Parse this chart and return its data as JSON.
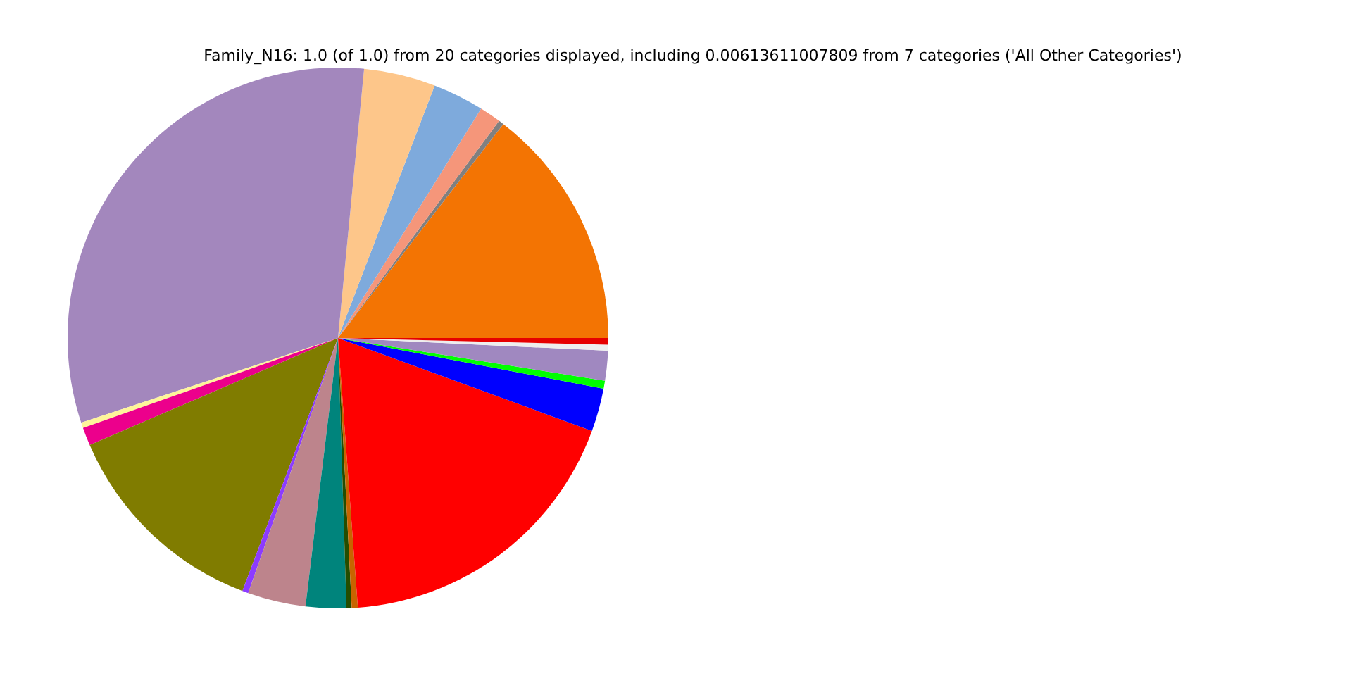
{
  "chart_data": {
    "type": "pie",
    "title": "Family_N16: 1.0 (of 1.0) from 20 categories displayed, including 0.00613611007809 from 7 categories ('All Other Categories')",
    "categories": [
      null,
      null,
      null,
      null,
      null,
      null,
      null,
      null,
      null,
      null,
      null,
      null,
      null,
      null,
      null,
      null,
      null,
      null,
      null,
      null
    ],
    "values": [
      14.53,
      0.31,
      1.28,
      3.06,
      4.28,
      31.61,
      0.33,
      1.08,
      12.77,
      0.36,
      3.47,
      2.42,
      0.31,
      0.36,
      18.25,
      2.58,
      0.47,
      1.78,
      0.36,
      0.39
    ],
    "colors": [
      "#f37403",
      "#808080",
      "#f5967a",
      "#7eaadc",
      "#fdc68a",
      "#a387bd",
      "#fef59a",
      "#ec008c",
      "#807c00",
      "#8c3cff",
      "#bd848c",
      "#00847c",
      "#254d00",
      "#c86400",
      "#ff0000",
      "#0000ff",
      "#00ff00",
      "#a088c0",
      "#eeeeee",
      "#e60000"
    ]
  }
}
